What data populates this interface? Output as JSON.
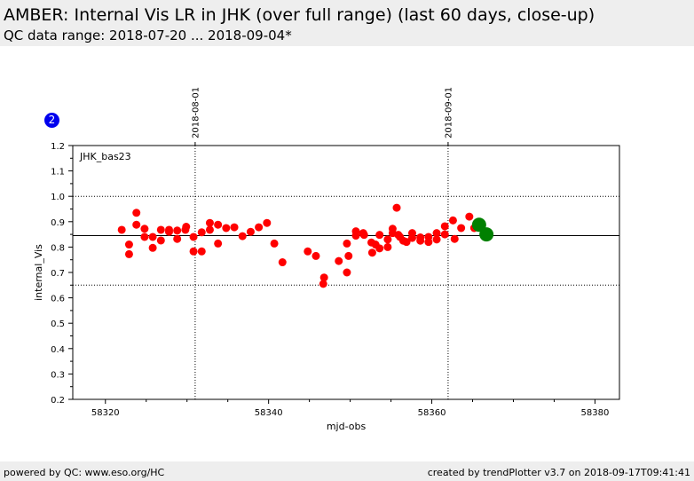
{
  "header": {
    "title": "AMBER: Internal Vis LR in JHK (over full range) (last 60 days, close-up)",
    "subtitle": "QC data range: 2018-07-20 ... 2018-09-04*"
  },
  "badge": {
    "label": "2",
    "color": "#0000ee"
  },
  "footer": {
    "left": "powered by QC: www.eso.org/HC",
    "right": "created by trendPlotter v3.7 on 2018-09-17T09:41:41"
  },
  "chart_data": {
    "type": "scatter",
    "xlabel": "mjd-obs",
    "ylabel": "internal_Vis",
    "annotation": "JHK_bas23",
    "xlim": [
      58316.0,
      58383.0
    ],
    "ylim": [
      0.2,
      1.2
    ],
    "x_ticks": [
      58320,
      58340,
      58360,
      58380
    ],
    "y_ticks": [
      0.2,
      0.3,
      0.4,
      0.5,
      0.6,
      0.7,
      0.8,
      0.9,
      1.0,
      1.1,
      1.2
    ],
    "reference_lines": {
      "mean": 0.845,
      "upper": 1.0,
      "lower": 0.65
    },
    "date_markers": [
      {
        "mjd": 58331,
        "label": "2018-08-01"
      },
      {
        "mjd": 58362,
        "label": "2018-09-01"
      }
    ],
    "colors": {
      "points": "#ff0000",
      "highlight": "#008000"
    },
    "series": [
      {
        "points": [
          [
            58322,
            0.868
          ],
          [
            58322.9,
            0.81
          ],
          [
            58322.9,
            0.772
          ],
          [
            58323.8,
            0.935
          ],
          [
            58323.8,
            0.888
          ],
          [
            58324.8,
            0.872
          ],
          [
            58324.8,
            0.84
          ],
          [
            58325.8,
            0.84
          ],
          [
            58325.8,
            0.797
          ],
          [
            58326.8,
            0.868
          ],
          [
            58326.8,
            0.826
          ],
          [
            58327.8,
            0.868
          ],
          [
            58327.8,
            0.86
          ],
          [
            58328.8,
            0.865
          ],
          [
            58328.8,
            0.832
          ],
          [
            58329.8,
            0.868
          ],
          [
            58329.9,
            0.88
          ],
          [
            58330.8,
            0.84
          ],
          [
            58330.8,
            0.783
          ],
          [
            58331.8,
            0.858
          ],
          [
            58331.8,
            0.783
          ],
          [
            58332.8,
            0.895
          ],
          [
            58332.8,
            0.868
          ],
          [
            58333.8,
            0.888
          ],
          [
            58333.8,
            0.814
          ],
          [
            58334.8,
            0.875
          ],
          [
            58335.8,
            0.878
          ],
          [
            58336.8,
            0.843
          ],
          [
            58337.8,
            0.86
          ],
          [
            58338.8,
            0.878
          ],
          [
            58339.8,
            0.895
          ],
          [
            58340.7,
            0.814
          ],
          [
            58341.7,
            0.74
          ],
          [
            58344.8,
            0.783
          ],
          [
            58345.8,
            0.765
          ],
          [
            58346.7,
            0.655
          ],
          [
            58346.8,
            0.68
          ],
          [
            58348.6,
            0.745
          ],
          [
            58349.6,
            0.814
          ],
          [
            58349.6,
            0.7
          ],
          [
            58349.8,
            0.765
          ],
          [
            58350.7,
            0.862
          ],
          [
            58350.7,
            0.845
          ],
          [
            58351.6,
            0.855
          ],
          [
            58351.7,
            0.848
          ],
          [
            58352.6,
            0.818
          ],
          [
            58352.7,
            0.778
          ],
          [
            58353.1,
            0.81
          ],
          [
            58353.6,
            0.848
          ],
          [
            58353.6,
            0.795
          ],
          [
            58354.6,
            0.83
          ],
          [
            58354.6,
            0.8
          ],
          [
            58355.2,
            0.872
          ],
          [
            58355.2,
            0.855
          ],
          [
            58355.7,
            0.955
          ],
          [
            58355.9,
            0.848
          ],
          [
            58356.1,
            0.84
          ],
          [
            58356.5,
            0.825
          ],
          [
            58356.9,
            0.82
          ],
          [
            58357.6,
            0.855
          ],
          [
            58357.6,
            0.836
          ],
          [
            58358.6,
            0.838
          ],
          [
            58358.6,
            0.825
          ],
          [
            58359.6,
            0.84
          ],
          [
            58359.6,
            0.82
          ],
          [
            58360.6,
            0.855
          ],
          [
            58360.6,
            0.83
          ],
          [
            58361.6,
            0.882
          ],
          [
            58361.6,
            0.85
          ],
          [
            58362.6,
            0.905
          ],
          [
            58362.8,
            0.832
          ],
          [
            58363.6,
            0.875
          ],
          [
            58364.6,
            0.92
          ],
          [
            58365.2,
            0.875
          ],
          [
            58365.6,
            0.895
          ]
        ]
      },
      {
        "highlight": true,
        "points": [
          [
            58365.8,
            0.888
          ],
          [
            58366.7,
            0.85
          ]
        ]
      }
    ]
  }
}
